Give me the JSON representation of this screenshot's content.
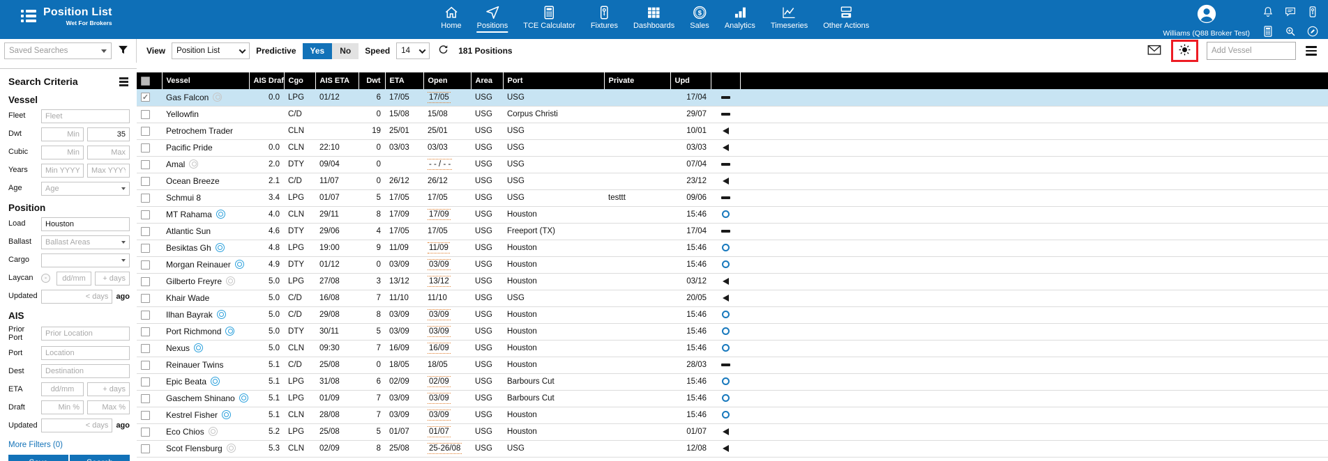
{
  "app": {
    "title": "Position List",
    "subtitle": "Wet For Brokers"
  },
  "nav": {
    "items": [
      {
        "label": "Home",
        "icon": "home",
        "active": false
      },
      {
        "label": "Positions",
        "icon": "positions",
        "active": true
      },
      {
        "label": "TCE Calculator",
        "icon": "calculator",
        "active": false
      },
      {
        "label": "Fixtures",
        "icon": "fixtures",
        "active": false
      },
      {
        "label": "Dashboards",
        "icon": "dashboards",
        "active": false
      },
      {
        "label": "Sales",
        "icon": "sales",
        "active": false
      },
      {
        "label": "Analytics",
        "icon": "analytics",
        "active": false
      },
      {
        "label": "Timeseries",
        "icon": "timeseries",
        "active": false
      },
      {
        "label": "Other Actions",
        "icon": "other-actions",
        "active": false
      }
    ]
  },
  "user": {
    "name": "Williams (Q88 Broker Test)",
    "icons": [
      "bell",
      "chat",
      "fixtures",
      "calculator",
      "search",
      "edit"
    ]
  },
  "toolbar": {
    "saved_searches_placeholder": "Saved Searches",
    "view_label": "View",
    "view_value": "Position List",
    "predictive_label": "Predictive",
    "predictive_yes": "Yes",
    "predictive_no": "No",
    "predictive_selected": "Yes",
    "speed_label": "Speed",
    "speed_value": "14",
    "positions_count": "181 Positions",
    "add_vessel_placeholder": "Add Vessel",
    "highlighted_control": "sun-icon"
  },
  "sidebar": {
    "title": "Search Criteria",
    "more_filters": "More Filters (0)",
    "save_label": "Save",
    "search_label": "Search",
    "sections": [
      {
        "heading": "Vessel",
        "fields": [
          {
            "label": "Fleet",
            "controls": [
              {
                "type": "input",
                "placeholder": "Fleet"
              }
            ]
          },
          {
            "label": "Dwt",
            "controls": [
              {
                "type": "input",
                "placeholder": "Min",
                "align": "right"
              },
              {
                "type": "input",
                "value": "35",
                "align": "right"
              }
            ]
          },
          {
            "label": "Cubic",
            "controls": [
              {
                "type": "input",
                "placeholder": "Min",
                "align": "right"
              },
              {
                "type": "input",
                "placeholder": "Max",
                "align": "right"
              }
            ]
          },
          {
            "label": "Years",
            "controls": [
              {
                "type": "input",
                "placeholder": "Min YYYY",
                "align": "center"
              },
              {
                "type": "input",
                "placeholder": "Max YYYY",
                "align": "center"
              }
            ]
          },
          {
            "label": "Age",
            "controls": [
              {
                "type": "select",
                "placeholder": "Age"
              }
            ]
          }
        ]
      },
      {
        "heading": "Position",
        "fields": [
          {
            "label": "Load",
            "controls": [
              {
                "type": "input",
                "value": "Houston"
              }
            ]
          },
          {
            "label": "Ballast",
            "controls": [
              {
                "type": "select",
                "placeholder": "Ballast Areas"
              }
            ]
          },
          {
            "label": "Cargo",
            "controls": [
              {
                "type": "select",
                "placeholder": ""
              }
            ]
          },
          {
            "label": "Laycan",
            "icon": "minus-circle",
            "controls": [
              {
                "type": "input",
                "placeholder": "dd/mm",
                "align": "center"
              },
              {
                "type": "input",
                "placeholder": "+ days",
                "align": "right"
              }
            ]
          },
          {
            "label": "Updated",
            "controls": [
              {
                "type": "input",
                "placeholder": "< days",
                "align": "right"
              },
              {
                "type": "text",
                "value": "ago"
              }
            ]
          }
        ]
      },
      {
        "heading": "AIS",
        "fields": [
          {
            "label": "Prior Port",
            "controls": [
              {
                "type": "input",
                "placeholder": "Prior Location"
              }
            ]
          },
          {
            "label": "Port",
            "controls": [
              {
                "type": "input",
                "placeholder": "Location"
              }
            ]
          },
          {
            "label": "Dest",
            "controls": [
              {
                "type": "input",
                "placeholder": "Destination"
              }
            ]
          },
          {
            "label": "ETA",
            "controls": [
              {
                "type": "input",
                "placeholder": "dd/mm",
                "align": "center"
              },
              {
                "type": "input",
                "placeholder": "+ days",
                "align": "right"
              }
            ]
          },
          {
            "label": "Draft",
            "controls": [
              {
                "type": "input",
                "placeholder": "Min %",
                "align": "right"
              },
              {
                "type": "input",
                "placeholder": "Max %",
                "align": "right"
              }
            ]
          },
          {
            "label": "Updated",
            "controls": [
              {
                "type": "input",
                "placeholder": "< days",
                "align": "right"
              },
              {
                "type": "text",
                "value": "ago"
              }
            ]
          }
        ]
      }
    ]
  },
  "table": {
    "columns": [
      "Vessel",
      "AIS Draft",
      "Cgo",
      "AIS ETA",
      "Dwt",
      "ETA",
      "Open",
      "Area",
      "Port",
      "Private",
      "Upd"
    ],
    "sort_column": "AIS Draft",
    "sort_direction": "asc",
    "rows": [
      {
        "vessel": "Gas Falcon",
        "ais": "grey",
        "checked": true,
        "selected": true,
        "ais_draft": "0.0",
        "cgo": "LPG",
        "ais_eta": "01/12",
        "dwt": "6",
        "eta": "17/05",
        "open": "17/05",
        "open_predictive": true,
        "area": "USG",
        "port": "USG",
        "private": "",
        "upd": "17/04",
        "status": "dash"
      },
      {
        "vessel": "Yellowfin",
        "ais": "",
        "checked": false,
        "selected": false,
        "ais_draft": "",
        "cgo": "C/D",
        "ais_eta": "",
        "dwt": "0",
        "eta": "15/08",
        "open": "15/08",
        "open_predictive": false,
        "area": "USG",
        "port": "Corpus Christi",
        "private": "",
        "upd": "29/07",
        "status": "dash"
      },
      {
        "vessel": "Petrochem Trader",
        "ais": "",
        "checked": false,
        "selected": false,
        "ais_draft": "",
        "cgo": "CLN",
        "ais_eta": "",
        "dwt": "19",
        "eta": "25/01",
        "open": "25/01",
        "open_predictive": false,
        "area": "USG",
        "port": "USG",
        "private": "",
        "upd": "10/01",
        "status": "triangle"
      },
      {
        "vessel": "Pacific Pride",
        "ais": "",
        "checked": false,
        "selected": false,
        "ais_draft": "0.0",
        "cgo": "CLN",
        "ais_eta": "22:10",
        "dwt": "0",
        "eta": "03/03",
        "open": "03/03",
        "open_predictive": false,
        "area": "USG",
        "port": "USG",
        "private": "",
        "upd": "03/03",
        "status": "triangle"
      },
      {
        "vessel": "Amal",
        "ais": "grey",
        "checked": false,
        "selected": false,
        "ais_draft": "2.0",
        "cgo": "DTY",
        "ais_eta": "09/04",
        "dwt": "0",
        "eta": "",
        "open": "- - / - -",
        "open_predictive": true,
        "area": "USG",
        "port": "USG",
        "private": "",
        "upd": "07/04",
        "status": "dash"
      },
      {
        "vessel": "Ocean Breeze",
        "ais": "",
        "checked": false,
        "selected": false,
        "ais_draft": "2.1",
        "cgo": "C/D",
        "ais_eta": "11/07",
        "dwt": "0",
        "eta": "26/12",
        "open": "26/12",
        "open_predictive": false,
        "area": "USG",
        "port": "USG",
        "private": "",
        "upd": "23/12",
        "status": "triangle"
      },
      {
        "vessel": "Schmui 8",
        "ais": "",
        "checked": false,
        "selected": false,
        "ais_draft": "3.4",
        "cgo": "LPG",
        "ais_eta": "01/07",
        "dwt": "5",
        "eta": "17/05",
        "open": "17/05",
        "open_predictive": false,
        "area": "USG",
        "port": "USG",
        "private": "testtt",
        "upd": "09/06",
        "status": "dash"
      },
      {
        "vessel": "MT Rahama",
        "ais": "blue",
        "checked": false,
        "selected": false,
        "ais_draft": "4.0",
        "cgo": "CLN",
        "ais_eta": "29/11",
        "dwt": "8",
        "eta": "17/09",
        "open": "17/09",
        "open_predictive": true,
        "area": "USG",
        "port": "Houston",
        "private": "",
        "upd": "15:46",
        "status": "circle"
      },
      {
        "vessel": "Atlantic Sun",
        "ais": "",
        "checked": false,
        "selected": false,
        "ais_draft": "4.6",
        "cgo": "DTY",
        "ais_eta": "29/06",
        "dwt": "4",
        "eta": "17/05",
        "open": "17/05",
        "open_predictive": false,
        "area": "USG",
        "port": "Freeport (TX)",
        "private": "",
        "upd": "17/04",
        "status": "dash"
      },
      {
        "vessel": "Besiktas Gh",
        "ais": "blue",
        "checked": false,
        "selected": false,
        "ais_draft": "4.8",
        "cgo": "LPG",
        "ais_eta": "19:00",
        "dwt": "9",
        "eta": "11/09",
        "open": "11/09",
        "open_predictive": true,
        "area": "USG",
        "port": "Houston",
        "private": "",
        "upd": "15:46",
        "status": "circle"
      },
      {
        "vessel": "Morgan Reinauer",
        "ais": "blue",
        "checked": false,
        "selected": false,
        "ais_draft": "4.9",
        "cgo": "DTY",
        "ais_eta": "01/12",
        "dwt": "0",
        "eta": "03/09",
        "open": "03/09",
        "open_predictive": true,
        "area": "USG",
        "port": "Houston",
        "private": "",
        "upd": "15:46",
        "status": "circle"
      },
      {
        "vessel": "Gilberto Freyre",
        "ais": "grey",
        "checked": false,
        "selected": false,
        "ais_draft": "5.0",
        "cgo": "LPG",
        "ais_eta": "27/08",
        "dwt": "3",
        "eta": "13/12",
        "open": "13/12",
        "open_predictive": true,
        "area": "USG",
        "port": "Houston",
        "private": "",
        "upd": "03/12",
        "status": "triangle"
      },
      {
        "vessel": "Khair Wade",
        "ais": "",
        "checked": false,
        "selected": false,
        "ais_draft": "5.0",
        "cgo": "C/D",
        "ais_eta": "16/08",
        "dwt": "7",
        "eta": "11/10",
        "open": "11/10",
        "open_predictive": false,
        "area": "USG",
        "port": "USG",
        "private": "",
        "upd": "20/05",
        "status": "triangle"
      },
      {
        "vessel": "Ilhan Bayrak",
        "ais": "blue",
        "checked": false,
        "selected": false,
        "ais_draft": "5.0",
        "cgo": "C/D",
        "ais_eta": "29/08",
        "dwt": "8",
        "eta": "03/09",
        "open": "03/09",
        "open_predictive": true,
        "area": "USG",
        "port": "Houston",
        "private": "",
        "upd": "15:46",
        "status": "circle"
      },
      {
        "vessel": "Port Richmond",
        "ais": "blue",
        "checked": false,
        "selected": false,
        "ais_draft": "5.0",
        "cgo": "DTY",
        "ais_eta": "30/11",
        "dwt": "5",
        "eta": "03/09",
        "open": "03/09",
        "open_predictive": true,
        "area": "USG",
        "port": "Houston",
        "private": "",
        "upd": "15:46",
        "status": "circle"
      },
      {
        "vessel": "Nexus",
        "ais": "blue",
        "checked": false,
        "selected": false,
        "ais_draft": "5.0",
        "cgo": "CLN",
        "ais_eta": "09:30",
        "dwt": "7",
        "eta": "16/09",
        "open": "16/09",
        "open_predictive": true,
        "area": "USG",
        "port": "Houston",
        "private": "",
        "upd": "15:46",
        "status": "circle"
      },
      {
        "vessel": "Reinauer Twins",
        "ais": "",
        "checked": false,
        "selected": false,
        "ais_draft": "5.1",
        "cgo": "C/D",
        "ais_eta": "25/08",
        "dwt": "0",
        "eta": "18/05",
        "open": "18/05",
        "open_predictive": false,
        "area": "USG",
        "port": "Houston",
        "private": "",
        "upd": "28/03",
        "status": "dash"
      },
      {
        "vessel": "Epic Beata",
        "ais": "blue",
        "checked": false,
        "selected": false,
        "ais_draft": "5.1",
        "cgo": "LPG",
        "ais_eta": "31/08",
        "dwt": "6",
        "eta": "02/09",
        "open": "02/09",
        "open_predictive": true,
        "area": "USG",
        "port": "Barbours Cut",
        "private": "",
        "upd": "15:46",
        "status": "circle"
      },
      {
        "vessel": "Gaschem Shinano",
        "ais": "blue",
        "checked": false,
        "selected": false,
        "ais_draft": "5.1",
        "cgo": "LPG",
        "ais_eta": "01/09",
        "dwt": "7",
        "eta": "03/09",
        "open": "03/09",
        "open_predictive": true,
        "area": "USG",
        "port": "Barbours Cut",
        "private": "",
        "upd": "15:46",
        "status": "circle"
      },
      {
        "vessel": "Kestrel Fisher",
        "ais": "blue",
        "checked": false,
        "selected": false,
        "ais_draft": "5.1",
        "cgo": "CLN",
        "ais_eta": "28/08",
        "dwt": "7",
        "eta": "03/09",
        "open": "03/09",
        "open_predictive": true,
        "area": "USG",
        "port": "Houston",
        "private": "",
        "upd": "15:46",
        "status": "circle"
      },
      {
        "vessel": "Eco Chios",
        "ais": "grey",
        "checked": false,
        "selected": false,
        "ais_draft": "5.2",
        "cgo": "LPG",
        "ais_eta": "25/08",
        "dwt": "5",
        "eta": "01/07",
        "open": "01/07",
        "open_predictive": true,
        "area": "USG",
        "port": "Houston",
        "private": "",
        "upd": "01/07",
        "status": "triangle"
      },
      {
        "vessel": "Scot Flensburg",
        "ais": "grey",
        "checked": false,
        "selected": false,
        "ais_draft": "5.3",
        "cgo": "CLN",
        "ais_eta": "02/09",
        "dwt": "8",
        "eta": "25/08",
        "open": "25-26/08",
        "open_predictive": true,
        "area": "USG",
        "port": "USG",
        "private": "",
        "upd": "12/08",
        "status": "triangle"
      }
    ]
  },
  "colors": {
    "brand_blue": "#0e6fb7",
    "accent_blue": "#1272b8",
    "selected_row_blue": "#c8e4f3",
    "predictive_orange": "#e07b28",
    "status_circle_blue": "#1879bd",
    "annotation_red": "#ed1c24"
  }
}
